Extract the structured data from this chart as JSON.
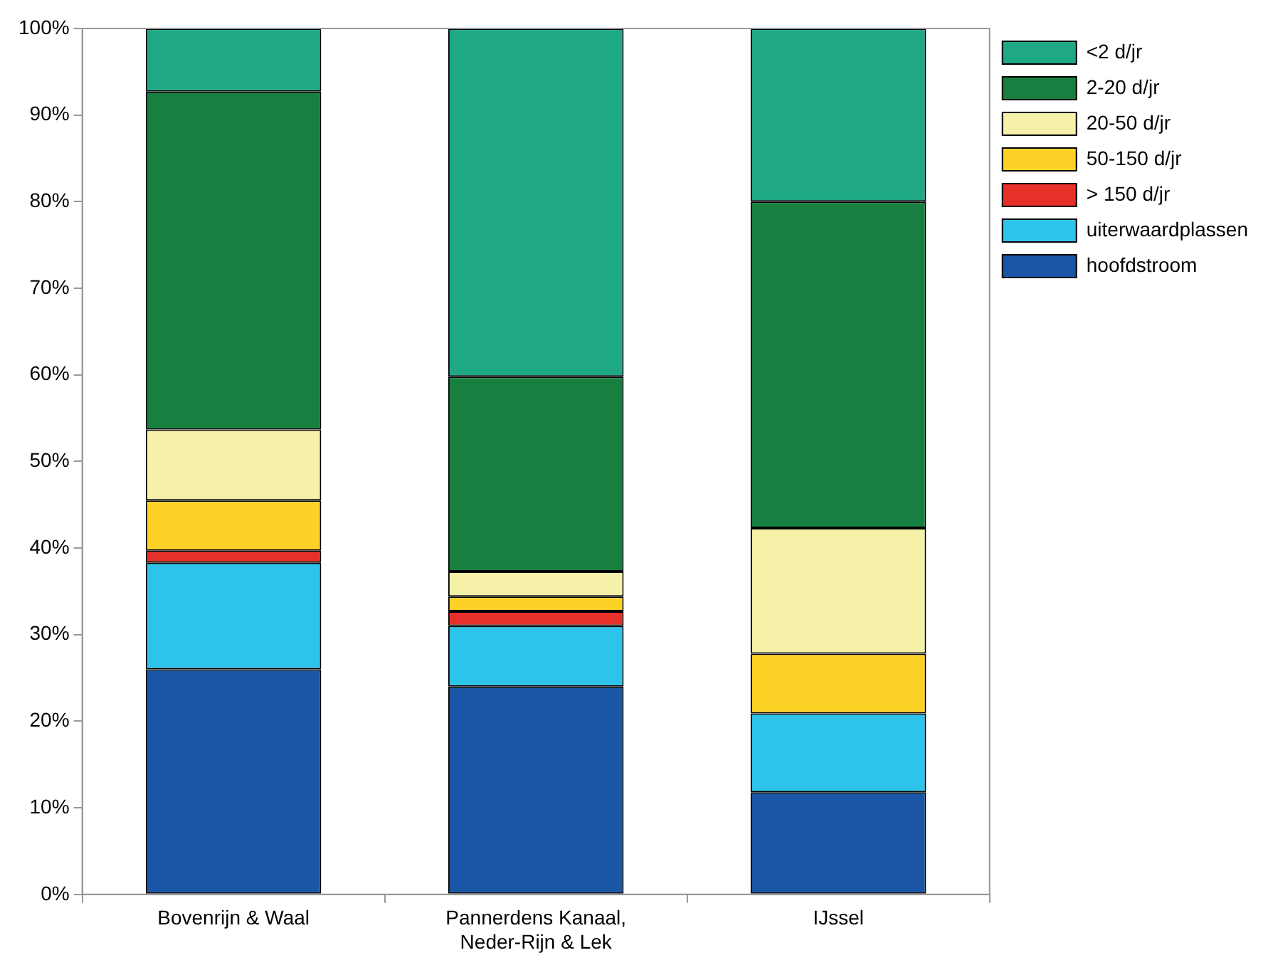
{
  "chart_data": {
    "type": "bar",
    "stacked": true,
    "categories": [
      "Bovenrijn & Waal",
      "Pannerdens Kanaal,\nNeder-Rijn & Lek",
      "IJssel"
    ],
    "series": [
      {
        "name": "hoofdstroom",
        "color": "#1a56a5",
        "values": [
          26,
          24,
          11.8
        ]
      },
      {
        "name": "uiterwaardplassen",
        "color": "#2ec3ea",
        "values": [
          12.3,
          7,
          9.1
        ]
      },
      {
        "name": "> 150 d/jr",
        "color": "#e8302a",
        "values": [
          1.4,
          1.7,
          0
        ]
      },
      {
        "name": "50-150 d/jr",
        "color": "#fdd226",
        "values": [
          5.8,
          1.7,
          6.9
        ]
      },
      {
        "name": "20-50 d/jr",
        "color": "#f5f1a8",
        "values": [
          8.2,
          2.9,
          14.5
        ]
      },
      {
        "name": "2-20 d/jr",
        "color": "#178040",
        "values": [
          39,
          22.5,
          37.7
        ]
      },
      {
        "name": "<2 d/jr",
        "color": "#1fa884",
        "values": [
          7.3,
          40.2,
          20
        ]
      }
    ],
    "ylim": [
      0,
      100
    ],
    "yticks": [
      {
        "value": 0,
        "label": "0%"
      },
      {
        "value": 10,
        "label": "10%"
      },
      {
        "value": 20,
        "label": "20%"
      },
      {
        "value": 30,
        "label": "30%"
      },
      {
        "value": 40,
        "label": "40%"
      },
      {
        "value": 50,
        "label": "50%"
      },
      {
        "value": 60,
        "label": "60%"
      },
      {
        "value": 70,
        "label": "70%"
      },
      {
        "value": 80,
        "label": "80%"
      },
      {
        "value": 90,
        "label": "90%"
      },
      {
        "value": 100,
        "label": "100%"
      }
    ],
    "grid": false,
    "legend": "top right"
  }
}
